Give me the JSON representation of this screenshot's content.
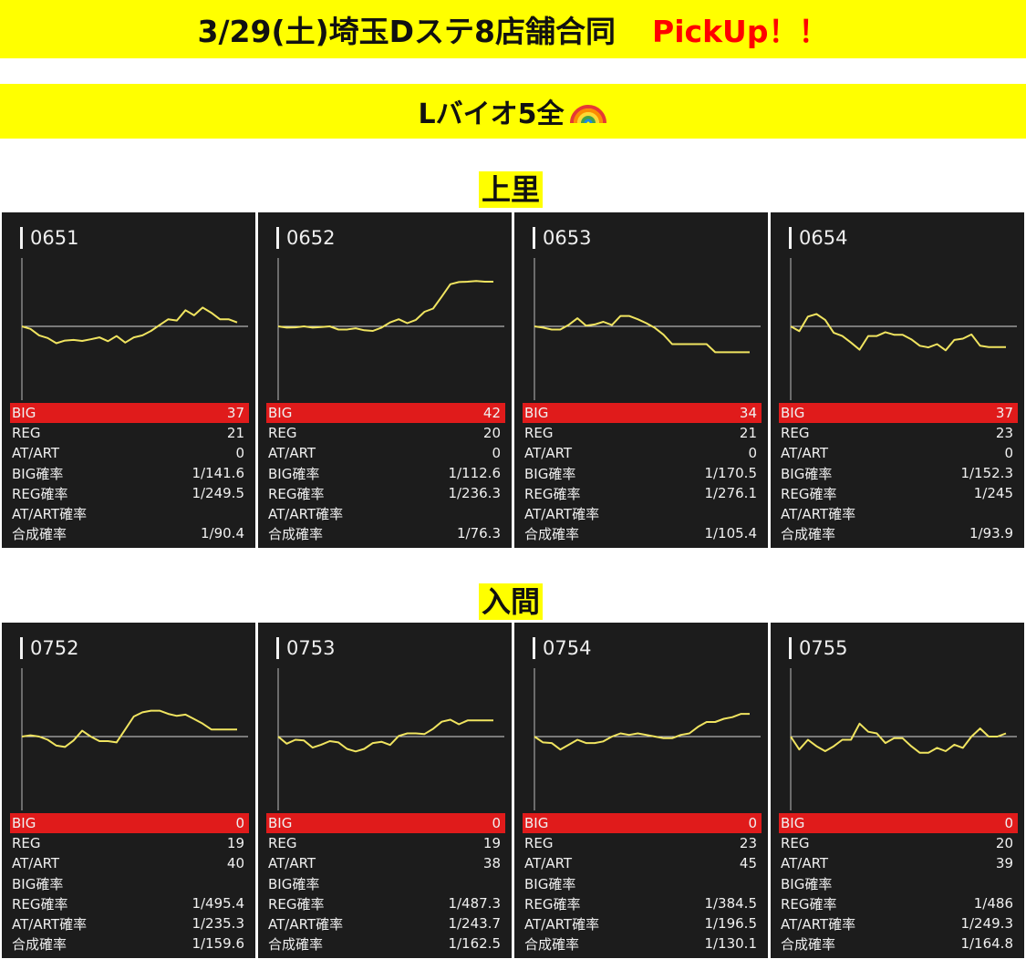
{
  "header": {
    "title": "3/29(土)埼玉Dステ8店舗合同",
    "pickup": "PickUp！！"
  },
  "model_banner": {
    "text": "Lバイオ5全",
    "icon": "rainbow-icon"
  },
  "stat_labels": [
    "BIG",
    "REG",
    "AT/ART",
    "BIG確率",
    "REG確率",
    "AT/ART確率",
    "合成確率"
  ],
  "colors": {
    "banner": "#ffff00",
    "pickup": "#ff0000",
    "panel_bg": "#1c1c1c",
    "big_row": "#e01b1b",
    "graph_line": "#f0e460",
    "zero_line": "#d8d8d8"
  },
  "stores": [
    {
      "name": "上里",
      "machines": [
        {
          "number": "0651",
          "stats": [
            "37",
            "21",
            "0",
            "1/141.6",
            "1/249.5",
            "",
            "1/90.4"
          ]
        },
        {
          "number": "0652",
          "stats": [
            "42",
            "20",
            "0",
            "1/112.6",
            "1/236.3",
            "",
            "1/76.3"
          ]
        },
        {
          "number": "0653",
          "stats": [
            "34",
            "21",
            "0",
            "1/170.5",
            "1/276.1",
            "",
            "1/105.4"
          ]
        },
        {
          "number": "0654",
          "stats": [
            "37",
            "23",
            "0",
            "1/152.3",
            "1/245",
            "",
            "1/93.9"
          ]
        }
      ]
    },
    {
      "name": "入間",
      "machines": [
        {
          "number": "0752",
          "stats": [
            "0",
            "19",
            "40",
            "",
            "1/495.4",
            "1/235.3",
            "1/159.6"
          ]
        },
        {
          "number": "0753",
          "stats": [
            "0",
            "19",
            "38",
            "",
            "1/487.3",
            "1/243.7",
            "1/162.5"
          ]
        },
        {
          "number": "0754",
          "stats": [
            "0",
            "23",
            "45",
            "",
            "1/384.5",
            "1/196.5",
            "1/130.1"
          ]
        },
        {
          "number": "0755",
          "stats": [
            "0",
            "20",
            "39",
            "",
            "1/486",
            "1/249.3",
            "1/164.8"
          ]
        }
      ]
    }
  ],
  "chart_data": [
    {
      "type": "line",
      "title": "0651",
      "x": [
        0,
        1,
        2,
        3,
        4,
        5,
        6,
        7,
        8,
        9,
        10,
        11,
        12,
        13,
        14,
        15,
        16,
        17,
        18,
        19,
        20,
        21,
        22,
        23,
        24,
        25
      ],
      "y": [
        0,
        -8,
        -28,
        -36,
        -52,
        -44,
        -42,
        -45,
        -40,
        -34,
        -46,
        -30,
        -50,
        -34,
        -28,
        -14,
        4,
        22,
        18,
        50,
        34,
        58,
        42,
        22,
        22,
        12
      ],
      "ylim": [
        -200,
        200
      ],
      "zero_line": true
    },
    {
      "type": "line",
      "title": "0652",
      "x": [
        0,
        1,
        2,
        3,
        4,
        5,
        6,
        7,
        8,
        9,
        10,
        11,
        12,
        13,
        14,
        15,
        16,
        17,
        18,
        19,
        20,
        21,
        22,
        23,
        24,
        25
      ],
      "y": [
        0,
        -4,
        -3,
        0,
        -4,
        -2,
        0,
        -10,
        -10,
        -6,
        -12,
        -14,
        -4,
        12,
        22,
        10,
        20,
        45,
        55,
        92,
        130,
        137,
        138,
        140,
        138,
        138
      ],
      "ylim": [
        -200,
        200
      ],
      "zero_line": true
    },
    {
      "type": "line",
      "title": "0653",
      "x": [
        0,
        1,
        2,
        3,
        4,
        5,
        6,
        7,
        8,
        9,
        10,
        11,
        12,
        13,
        14,
        15,
        16,
        17,
        18,
        19,
        20,
        21,
        22,
        23,
        24,
        25
      ],
      "y": [
        0,
        -4,
        -10,
        -10,
        5,
        25,
        2,
        6,
        14,
        4,
        32,
        32,
        22,
        10,
        -5,
        -26,
        -55,
        -55,
        -55,
        -55,
        -55,
        -80,
        -80,
        -80,
        -80,
        -80
      ],
      "ylim": [
        -200,
        200
      ],
      "zero_line": true
    },
    {
      "type": "line",
      "title": "0654",
      "x": [
        0,
        1,
        2,
        3,
        4,
        5,
        6,
        7,
        8,
        9,
        10,
        11,
        12,
        13,
        14,
        15,
        16,
        17,
        18,
        19,
        20,
        21,
        22,
        23,
        24,
        25
      ],
      "y": [
        0,
        -15,
        30,
        38,
        20,
        -20,
        -30,
        -50,
        -72,
        -30,
        -30,
        -18,
        -26,
        -26,
        -40,
        -60,
        -65,
        -55,
        -74,
        -42,
        -38,
        -25,
        -60,
        -64,
        -64,
        -64
      ],
      "ylim": [
        -200,
        200
      ],
      "zero_line": true
    },
    {
      "type": "line",
      "title": "0752",
      "x": [
        0,
        1,
        2,
        3,
        4,
        5,
        6,
        7,
        8,
        9,
        10,
        11,
        12,
        13,
        14,
        15,
        16,
        17,
        18,
        19,
        20,
        21,
        22,
        23,
        24,
        25
      ],
      "y": [
        0,
        4,
        0,
        -10,
        -28,
        -32,
        -12,
        18,
        0,
        -14,
        -14,
        -18,
        22,
        62,
        75,
        80,
        80,
        70,
        64,
        68,
        54,
        40,
        22,
        22,
        22,
        22
      ],
      "ylim": [
        -200,
        200
      ],
      "zero_line": true
    },
    {
      "type": "line",
      "title": "0753",
      "x": [
        0,
        1,
        2,
        3,
        4,
        5,
        6,
        7,
        8,
        9,
        10,
        11,
        12,
        13,
        14,
        15,
        16,
        17,
        18,
        19,
        20,
        21,
        22,
        23,
        24,
        25
      ],
      "y": [
        0,
        -22,
        -10,
        -12,
        -34,
        -25,
        -14,
        -18,
        -38,
        -46,
        -38,
        -20,
        -16,
        -26,
        2,
        10,
        10,
        8,
        24,
        46,
        52,
        38,
        50,
        50,
        50,
        50
      ],
      "ylim": [
        -200,
        200
      ],
      "zero_line": true
    },
    {
      "type": "line",
      "title": "0754",
      "x": [
        0,
        1,
        2,
        3,
        4,
        5,
        6,
        7,
        8,
        9,
        10,
        11,
        12,
        13,
        14,
        15,
        16,
        17,
        18,
        19,
        20,
        21,
        22,
        23,
        24,
        25
      ],
      "y": [
        0,
        -18,
        -20,
        -40,
        -25,
        -10,
        -20,
        -20,
        -15,
        0,
        10,
        5,
        10,
        5,
        0,
        -5,
        -5,
        5,
        10,
        30,
        45,
        45,
        55,
        60,
        70,
        70
      ],
      "ylim": [
        -200,
        200
      ],
      "zero_line": true
    },
    {
      "type": "line",
      "title": "0755",
      "x": [
        0,
        1,
        2,
        3,
        4,
        5,
        6,
        7,
        8,
        9,
        10,
        11,
        12,
        13,
        14,
        15,
        16,
        17,
        18,
        19,
        20,
        21,
        22,
        23,
        24,
        25
      ],
      "y": [
        0,
        -40,
        -10,
        -30,
        -45,
        -30,
        -10,
        -10,
        40,
        15,
        10,
        -20,
        -5,
        -5,
        -30,
        -50,
        -50,
        -35,
        -45,
        -25,
        -35,
        0,
        25,
        0,
        0,
        10
      ],
      "ylim": [
        -200,
        200
      ],
      "zero_line": true
    }
  ]
}
